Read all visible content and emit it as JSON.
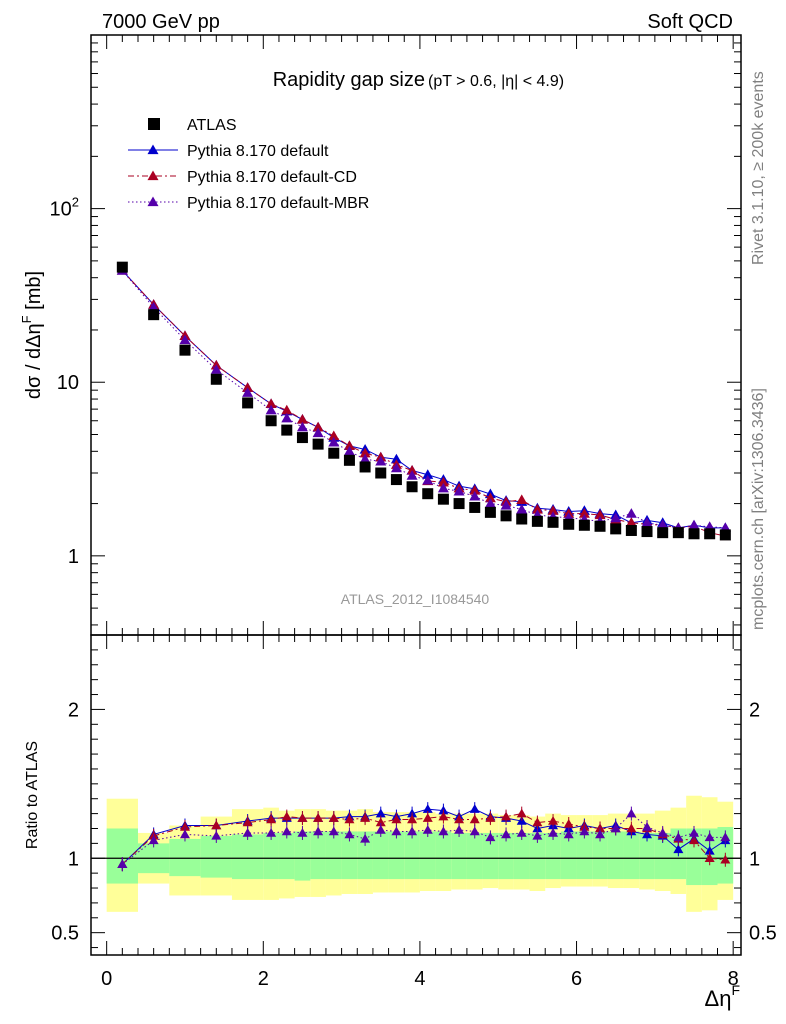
{
  "header": {
    "left": "7000 GeV pp",
    "right": "Soft QCD"
  },
  "side_labels": {
    "rivet": "Rivet 3.1.10, ≥ 200k events",
    "mcplots": "mcplots.cern.ch [arXiv:1306.3436]"
  },
  "chart_data": [
    {
      "type": "scatter",
      "title": "Rapidity gap size",
      "subtitle": "(pT > 0.6, |η| < 4.9)",
      "ylabel": "dσ / dΔη^F [mb]",
      "xlabel": "Δη^F",
      "analysis_tag": "ATLAS_2012_I1084540",
      "yscale": "log",
      "ylim": [
        0.35,
        1000
      ],
      "xlim": [
        -0.2,
        8.1
      ],
      "x_ticks": [
        0,
        2,
        4,
        6,
        8
      ],
      "y_tick_labels": [
        "1",
        "10",
        "10^2"
      ],
      "legend_position": "top-left",
      "x": [
        0.2,
        0.6,
        1.0,
        1.4,
        1.8,
        2.1,
        2.3,
        2.5,
        2.7,
        2.9,
        3.1,
        3.3,
        3.5,
        3.7,
        3.9,
        4.1,
        4.3,
        4.5,
        4.7,
        4.9,
        5.1,
        5.3,
        5.5,
        5.7,
        5.9,
        6.1,
        6.3,
        6.5,
        6.7,
        6.9,
        7.1,
        7.3,
        7.5,
        7.7,
        7.9
      ],
      "series": [
        {
          "name": "ATLAS",
          "marker": "square",
          "color": "#000000",
          "values": [
            46,
            24.5,
            15.3,
            10.4,
            7.6,
            6.0,
            5.3,
            4.8,
            4.4,
            3.9,
            3.55,
            3.25,
            3.0,
            2.75,
            2.5,
            2.28,
            2.12,
            2.0,
            1.9,
            1.78,
            1.7,
            1.63,
            1.58,
            1.56,
            1.52,
            1.5,
            1.48,
            1.43,
            1.4,
            1.38,
            1.36,
            1.36,
            1.34,
            1.34,
            1.32
          ]
        },
        {
          "name": "Pythia 8.170 default",
          "marker": "triangle",
          "line": "solid",
          "color": "#0000cc",
          "values": [
            44,
            28,
            18.5,
            12.5,
            9.3,
            7.5,
            6.8,
            6.1,
            5.5,
            4.8,
            4.3,
            4.1,
            3.7,
            3.6,
            3.1,
            2.93,
            2.75,
            2.52,
            2.43,
            2.27,
            2.08,
            2.05,
            1.88,
            1.85,
            1.8,
            1.82,
            1.75,
            1.72,
            1.55,
            1.6,
            1.55,
            1.45,
            1.5,
            1.45,
            1.45
          ]
        },
        {
          "name": "Pythia 8.170 default-CD",
          "marker": "triangle",
          "line": "dashdot",
          "color": "#aa0022",
          "values": [
            44,
            28,
            18.5,
            12.5,
            9.3,
            7.5,
            6.9,
            6.1,
            5.5,
            4.9,
            4.3,
            3.9,
            3.7,
            3.35,
            3.1,
            2.7,
            2.65,
            2.45,
            2.38,
            2.15,
            2.05,
            2.1,
            1.85,
            1.82,
            1.75,
            1.75,
            1.72,
            1.62,
            1.55,
            1.52,
            1.5,
            1.45,
            1.48,
            1.36,
            1.3
          ]
        },
        {
          "name": "Pythia 8.170 default-MBR",
          "marker": "triangle",
          "line": "dotted",
          "color": "#5500aa",
          "values": [
            44,
            27,
            17.5,
            11.8,
            8.7,
            6.9,
            6.2,
            5.5,
            5.1,
            4.5,
            4.0,
            3.6,
            3.5,
            3.2,
            2.9,
            2.72,
            2.45,
            2.35,
            2.2,
            2.0,
            1.95,
            1.85,
            1.72,
            1.68,
            1.66,
            1.62,
            1.58,
            1.65,
            1.75,
            1.55,
            1.5,
            1.45,
            1.5,
            1.47,
            1.45
          ]
        }
      ]
    },
    {
      "type": "scatter",
      "ylabel": "Ratio to ATLAS",
      "xlabel": "Δη^F",
      "ylim": [
        0.35,
        2.5
      ],
      "xlim": [
        -0.2,
        8.1
      ],
      "x_ticks": [
        0,
        2,
        4,
        6,
        8
      ],
      "y_ticks": [
        0.5,
        1,
        2
      ],
      "reference_line": 1,
      "bin_edges": [
        0,
        0.4,
        0.8,
        1.2,
        1.6,
        2.0,
        2.2,
        2.4,
        2.6,
        2.8,
        3.0,
        3.2,
        3.4,
        3.6,
        3.8,
        4.0,
        4.2,
        4.4,
        4.6,
        4.8,
        5.0,
        5.2,
        5.4,
        5.6,
        5.8,
        6.0,
        6.2,
        6.4,
        6.6,
        6.8,
        7.0,
        7.2,
        7.4,
        7.6,
        7.8,
        8.0
      ],
      "bands": [
        {
          "name": "stat",
          "color": "#99ff99",
          "upper": [
            1.2,
            1.1,
            1.13,
            1.15,
            1.16,
            1.17,
            1.17,
            1.18,
            1.18,
            1.18,
            1.18,
            1.18,
            1.18,
            1.18,
            1.18,
            1.18,
            1.18,
            1.17,
            1.17,
            1.17,
            1.17,
            1.17,
            1.17,
            1.17,
            1.18,
            1.18,
            1.18,
            1.18,
            1.18,
            1.17,
            1.17,
            1.2,
            1.2,
            1.2,
            1.21
          ],
          "lower": [
            0.83,
            0.9,
            0.88,
            0.87,
            0.86,
            0.86,
            0.86,
            0.85,
            0.86,
            0.86,
            0.86,
            0.86,
            0.86,
            0.86,
            0.86,
            0.86,
            0.86,
            0.86,
            0.86,
            0.86,
            0.86,
            0.86,
            0.86,
            0.86,
            0.86,
            0.86,
            0.86,
            0.86,
            0.86,
            0.86,
            0.86,
            0.86,
            0.82,
            0.82,
            0.83
          ]
        },
        {
          "name": "total",
          "color": "#ffff99",
          "upper": [
            1.4,
            1.17,
            1.22,
            1.28,
            1.33,
            1.34,
            1.32,
            1.33,
            1.33,
            1.32,
            1.32,
            1.33,
            1.31,
            1.31,
            1.31,
            1.31,
            1.3,
            1.3,
            1.3,
            1.3,
            1.29,
            1.29,
            1.28,
            1.3,
            1.29,
            1.29,
            1.29,
            1.3,
            1.3,
            1.3,
            1.32,
            1.34,
            1.42,
            1.41,
            1.38
          ],
          "lower": [
            0.64,
            0.83,
            0.75,
            0.75,
            0.72,
            0.72,
            0.73,
            0.74,
            0.74,
            0.75,
            0.76,
            0.76,
            0.77,
            0.77,
            0.77,
            0.78,
            0.78,
            0.79,
            0.79,
            0.8,
            0.79,
            0.79,
            0.78,
            0.8,
            0.81,
            0.81,
            0.81,
            0.8,
            0.8,
            0.79,
            0.78,
            0.76,
            0.64,
            0.65,
            0.72
          ]
        }
      ],
      "x": [
        0.2,
        0.6,
        1.0,
        1.4,
        1.8,
        2.1,
        2.3,
        2.5,
        2.7,
        2.9,
        3.1,
        3.3,
        3.5,
        3.7,
        3.9,
        4.1,
        4.3,
        4.5,
        4.7,
        4.9,
        5.1,
        5.3,
        5.5,
        5.7,
        5.9,
        6.1,
        6.3,
        6.5,
        6.7,
        6.9,
        7.1,
        7.3,
        7.5,
        7.7,
        7.9
      ],
      "series": [
        {
          "name": "Pythia 8.170 default",
          "color": "#0000cc",
          "values": [
            0.96,
            1.16,
            1.22,
            1.22,
            1.25,
            1.27,
            1.27,
            1.27,
            1.27,
            1.27,
            1.28,
            1.28,
            1.3,
            1.28,
            1.3,
            1.33,
            1.32,
            1.28,
            1.33,
            1.28,
            1.27,
            1.25,
            1.2,
            1.22,
            1.2,
            1.22,
            1.2,
            1.22,
            1.18,
            1.16,
            1.15,
            1.06,
            1.13,
            1.05,
            1.12
          ]
        },
        {
          "name": "Pythia 8.170 default-CD",
          "color": "#aa0022",
          "values": [
            0.96,
            1.15,
            1.21,
            1.22,
            1.24,
            1.26,
            1.28,
            1.27,
            1.27,
            1.27,
            1.26,
            1.27,
            1.24,
            1.26,
            1.26,
            1.27,
            1.28,
            1.26,
            1.26,
            1.27,
            1.28,
            1.3,
            1.24,
            1.25,
            1.23,
            1.21,
            1.2,
            1.2,
            1.2,
            1.2,
            1.16,
            1.13,
            1.12,
            1.0,
            0.99
          ]
        },
        {
          "name": "Pythia 8.170 default-MBR",
          "color": "#5500aa",
          "values": [
            0.96,
            1.12,
            1.16,
            1.15,
            1.17,
            1.17,
            1.18,
            1.17,
            1.18,
            1.18,
            1.16,
            1.13,
            1.19,
            1.18,
            1.18,
            1.19,
            1.18,
            1.19,
            1.18,
            1.14,
            1.16,
            1.17,
            1.15,
            1.17,
            1.16,
            1.18,
            1.16,
            1.2,
            1.3,
            1.21,
            1.17,
            1.14,
            1.17,
            1.14,
            1.14
          ]
        }
      ]
    }
  ]
}
